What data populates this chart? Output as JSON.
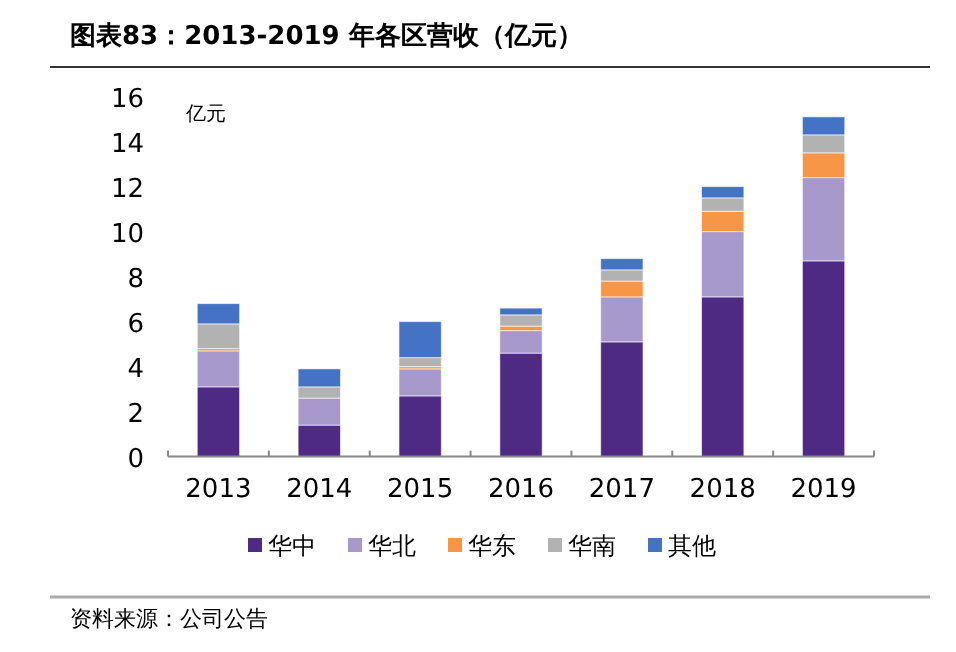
{
  "chart_data": {
    "type": "bar",
    "stacked": true,
    "title": "图表83：2013-2019 年各区营收（亿元）",
    "ylabel": "亿元",
    "categories": [
      "2013",
      "2014",
      "2015",
      "2016",
      "2017",
      "2018",
      "2019"
    ],
    "series": [
      {
        "name": "华中",
        "color": "#4e2a84",
        "values": [
          3.1,
          1.4,
          2.7,
          4.6,
          5.1,
          7.1,
          8.7
        ]
      },
      {
        "name": "华北",
        "color": "#a899cc",
        "values": [
          1.6,
          1.2,
          1.2,
          1.0,
          2.0,
          2.9,
          3.7
        ]
      },
      {
        "name": "华东",
        "color": "#f79646",
        "values": [
          0.1,
          0,
          0.1,
          0.2,
          0.7,
          0.9,
          1.1
        ]
      },
      {
        "name": "华南",
        "color": "#b2b2b2",
        "values": [
          1.1,
          0.5,
          0.4,
          0.5,
          0.5,
          0.6,
          0.8
        ]
      },
      {
        "name": "其他",
        "color": "#4472c4",
        "values": [
          0.9,
          0.8,
          1.6,
          0.3,
          0.5,
          0.5,
          0.8
        ]
      }
    ],
    "ylim": [
      0,
      16
    ],
    "yticks": [
      0,
      2,
      4,
      6,
      8,
      10,
      12,
      14,
      16
    ],
    "grid": false,
    "legend": "bottom",
    "annotations": [
      "资料来源：公司公告"
    ]
  }
}
